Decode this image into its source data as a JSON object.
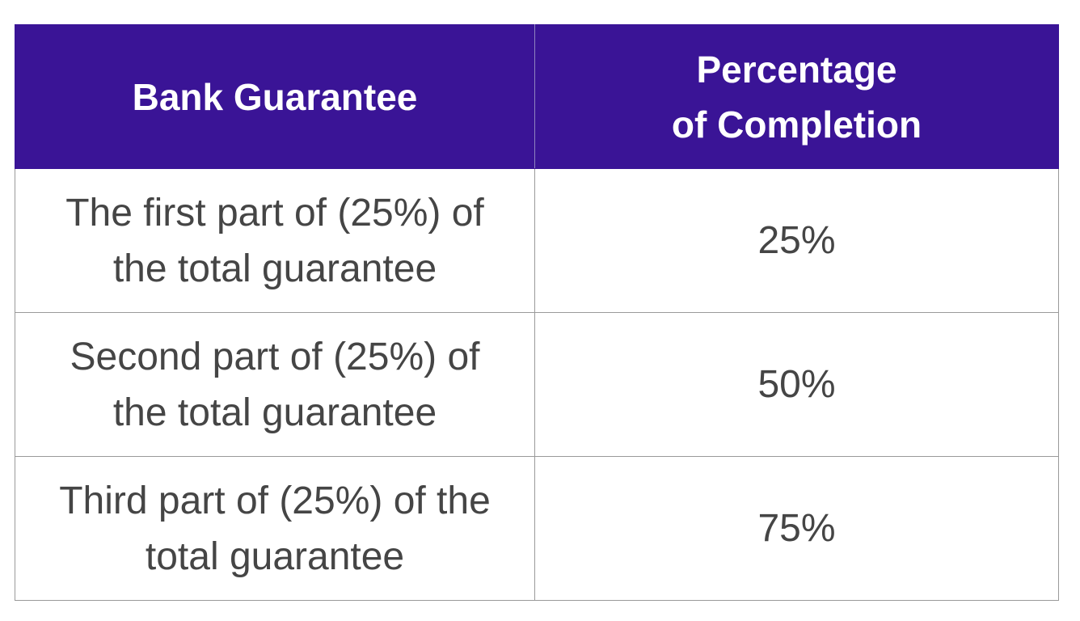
{
  "table": {
    "header": {
      "bank_guarantee": "Bank Guarantee",
      "completion": [
        "Percentage",
        "of Completion"
      ]
    },
    "rows": [
      {
        "guarantee": [
          "The first part of (25%) of",
          "the total guarantee"
        ],
        "completion": "25%"
      },
      {
        "guarantee": [
          "Second part of (25%) of",
          "the total guarantee"
        ],
        "completion": "50%"
      },
      {
        "guarantee": [
          "Third part of (25%) of the",
          "total guarantee"
        ],
        "completion": "75%"
      }
    ]
  }
}
